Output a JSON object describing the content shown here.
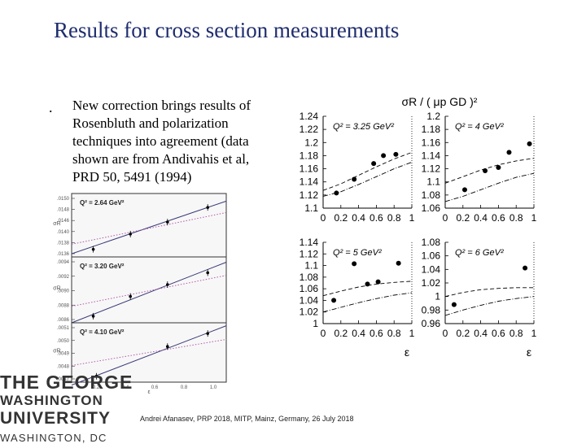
{
  "page": {
    "title": "Results for cross section measurements",
    "bullet": ".",
    "paragraph_lines": [
      "New correction brings results of",
      "Rosenbluth and polarization",
      "techniques into agreement (data",
      "shown are from Andivahis et al,",
      "PRD 50, 5491 (1994)"
    ],
    "footer": "Andrei Afanasev, PRP 2018, MITP, Mainz, Germany, 26 July 2018",
    "logo_lines": [
      "THE GEORGE",
      "WASHINGTON",
      "UNIVERSITY",
      "WASHINGTON, DC"
    ]
  },
  "chart_data": [
    {
      "type": "scatter",
      "panel": "right-top-left",
      "annotation": "Q² = 3.25 GeV²",
      "ylabel": "σR / ( μp GD )²",
      "xlabel": "",
      "x_ticks": [
        "0",
        "0.2",
        "0.4",
        "0.6",
        "0.8",
        "1"
      ],
      "y_ticks": [
        "1.1",
        "1.12",
        "1.14",
        "1.16",
        "1.18",
        "1.2",
        "1.22",
        "1.24"
      ],
      "xlim": [
        0,
        1
      ],
      "ylim": [
        1.1,
        1.24
      ],
      "points": [
        {
          "x": 0.15,
          "y": 1.123
        },
        {
          "x": 0.35,
          "y": 1.144
        },
        {
          "x": 0.57,
          "y": 1.168
        },
        {
          "x": 0.68,
          "y": 1.18
        },
        {
          "x": 0.82,
          "y": 1.182
        }
      ],
      "curves": [
        {
          "style": "dashed",
          "x": [
            0,
            0.2,
            0.4,
            0.6,
            0.8,
            1
          ],
          "y": [
            1.127,
            1.137,
            1.15,
            1.163,
            1.175,
            1.185
          ]
        },
        {
          "style": "dash-dot",
          "x": [
            0,
            0.2,
            0.4,
            0.6,
            0.8,
            1
          ],
          "y": [
            1.118,
            1.125,
            1.136,
            1.148,
            1.16,
            1.17
          ]
        }
      ]
    },
    {
      "type": "scatter",
      "panel": "right-top-right",
      "annotation": "Q² = 4 GeV²",
      "xlabel": "",
      "x_ticks": [
        "0",
        "0.2",
        "0.4",
        "0.6",
        "0.8",
        "1"
      ],
      "y_ticks": [
        "1.06",
        "1.08",
        "1.1",
        "1.12",
        "1.14",
        "1.16",
        "1.18",
        "1.2"
      ],
      "xlim": [
        0,
        1
      ],
      "ylim": [
        1.06,
        1.2
      ],
      "points": [
        {
          "x": 0.22,
          "y": 1.088
        },
        {
          "x": 0.45,
          "y": 1.117
        },
        {
          "x": 0.6,
          "y": 1.122
        },
        {
          "x": 0.72,
          "y": 1.145
        },
        {
          "x": 0.95,
          "y": 1.158
        }
      ],
      "curves": [
        {
          "style": "dashed",
          "x": [
            0,
            0.2,
            0.4,
            0.6,
            0.8,
            1
          ],
          "y": [
            1.098,
            1.108,
            1.118,
            1.126,
            1.132,
            1.136
          ]
        },
        {
          "style": "dash-dot",
          "x": [
            0,
            0.2,
            0.4,
            0.6,
            0.8,
            1
          ],
          "y": [
            1.07,
            1.078,
            1.088,
            1.098,
            1.107,
            1.113
          ]
        }
      ]
    },
    {
      "type": "scatter",
      "panel": "right-bottom-left",
      "annotation": "Q² = 5 GeV²",
      "xlabel": "ε",
      "x_ticks": [
        "0",
        "0.2",
        "0.4",
        "0.6",
        "0.8",
        "1"
      ],
      "y_ticks": [
        "1",
        "1.02",
        "1.04",
        "1.06",
        "1.08",
        "1.1",
        "1.12",
        "1.14"
      ],
      "xlim": [
        0,
        1
      ],
      "ylim": [
        1.0,
        1.14
      ],
      "points": [
        {
          "x": 0.12,
          "y": 1.04
        },
        {
          "x": 0.35,
          "y": 1.103
        },
        {
          "x": 0.5,
          "y": 1.068
        },
        {
          "x": 0.62,
          "y": 1.072
        },
        {
          "x": 0.85,
          "y": 1.104
        }
      ],
      "curves": [
        {
          "style": "dashed",
          "x": [
            0,
            0.2,
            0.4,
            0.6,
            0.8,
            1
          ],
          "y": [
            1.048,
            1.056,
            1.063,
            1.068,
            1.071,
            1.073
          ]
        },
        {
          "style": "dash-dot",
          "x": [
            0,
            0.2,
            0.4,
            0.6,
            0.8,
            1
          ],
          "y": [
            1.02,
            1.028,
            1.036,
            1.043,
            1.049,
            1.053
          ]
        }
      ]
    },
    {
      "type": "scatter",
      "panel": "right-bottom-right",
      "annotation": "Q² = 6 GeV²",
      "xlabel": "ε",
      "x_ticks": [
        "0",
        "0.2",
        "0.4",
        "0.6",
        "0.8",
        "1"
      ],
      "y_ticks": [
        "0.96",
        "0.98",
        "1",
        "1.02",
        "1.04",
        "1.06",
        "1.08"
      ],
      "xlim": [
        0,
        1
      ],
      "ylim": [
        0.96,
        1.08
      ],
      "points": [
        {
          "x": 0.1,
          "y": 0.988
        },
        {
          "x": 0.9,
          "y": 1.042
        }
      ],
      "curves": [
        {
          "style": "dashed",
          "x": [
            0,
            0.2,
            0.4,
            0.6,
            0.8,
            1
          ],
          "y": [
            1.0,
            1.006,
            1.01,
            1.012,
            1.013,
            1.013
          ]
        },
        {
          "style": "dash-dot",
          "x": [
            0,
            0.2,
            0.4,
            0.6,
            0.8,
            1
          ],
          "y": [
            0.972,
            0.98,
            0.987,
            0.993,
            0.997,
            1.0
          ]
        }
      ]
    },
    {
      "type": "scatter",
      "panel": "left-top",
      "annotation": "Q² = 2.64 GeV²",
      "ylabel": "σR",
      "x_ticks": [],
      "y_ticks": [
        ".0150",
        ".0148",
        ".0146",
        ".0140",
        ".0138",
        ".0136"
      ],
      "xlim": [
        0,
        1
      ],
      "ylim": [
        0,
        1
      ],
      "points": [
        {
          "x": 0.14,
          "y": 0.12
        },
        {
          "x": 0.38,
          "y": 0.36
        },
        {
          "x": 0.62,
          "y": 0.55
        },
        {
          "x": 0.88,
          "y": 0.78
        }
      ],
      "lines": [
        {
          "style": "solid",
          "x": [
            0,
            1
          ],
          "y": [
            0.05,
            0.88
          ]
        },
        {
          "style": "dotted",
          "x": [
            0,
            1
          ],
          "y": [
            0.2,
            0.7
          ]
        }
      ]
    },
    {
      "type": "scatter",
      "panel": "left-middle",
      "annotation": "Q² = 3.20 GeV²",
      "ylabel": "σR",
      "x_ticks": [],
      "y_ticks": [
        ".0094",
        ".0092",
        ".0090",
        ".0088",
        ".0086"
      ],
      "xlim": [
        0,
        1
      ],
      "ylim": [
        0,
        1
      ],
      "points": [
        {
          "x": 0.14,
          "y": 0.1
        },
        {
          "x": 0.38,
          "y": 0.4
        },
        {
          "x": 0.62,
          "y": 0.58
        },
        {
          "x": 0.88,
          "y": 0.76
        }
      ],
      "lines": [
        {
          "style": "solid",
          "x": [
            0,
            1
          ],
          "y": [
            0.0,
            0.92
          ]
        },
        {
          "style": "dotted",
          "x": [
            0,
            1
          ],
          "y": [
            0.25,
            0.72
          ]
        }
      ]
    },
    {
      "type": "scatter",
      "panel": "left-bottom",
      "annotation": "Q² = 4.10 GeV²",
      "ylabel": "σR",
      "xlabel": "ε",
      "x_ticks": [
        "0.2",
        "0.4",
        "0.6",
        "0.8",
        "1.0"
      ],
      "y_ticks": [
        ".0051",
        ".0050",
        ".0049",
        ".0048",
        ".0047"
      ],
      "xlim": [
        0,
        1
      ],
      "ylim": [
        0,
        1
      ],
      "points": [
        {
          "x": 0.16,
          "y": 0.1
        },
        {
          "x": 0.62,
          "y": 0.6
        },
        {
          "x": 0.88,
          "y": 0.82
        }
      ],
      "lines": [
        {
          "style": "solid",
          "x": [
            0,
            1
          ],
          "y": [
            -0.05,
            0.95
          ]
        },
        {
          "style": "dotted",
          "x": [
            0,
            1
          ],
          "y": [
            0.28,
            0.72
          ]
        }
      ]
    }
  ]
}
